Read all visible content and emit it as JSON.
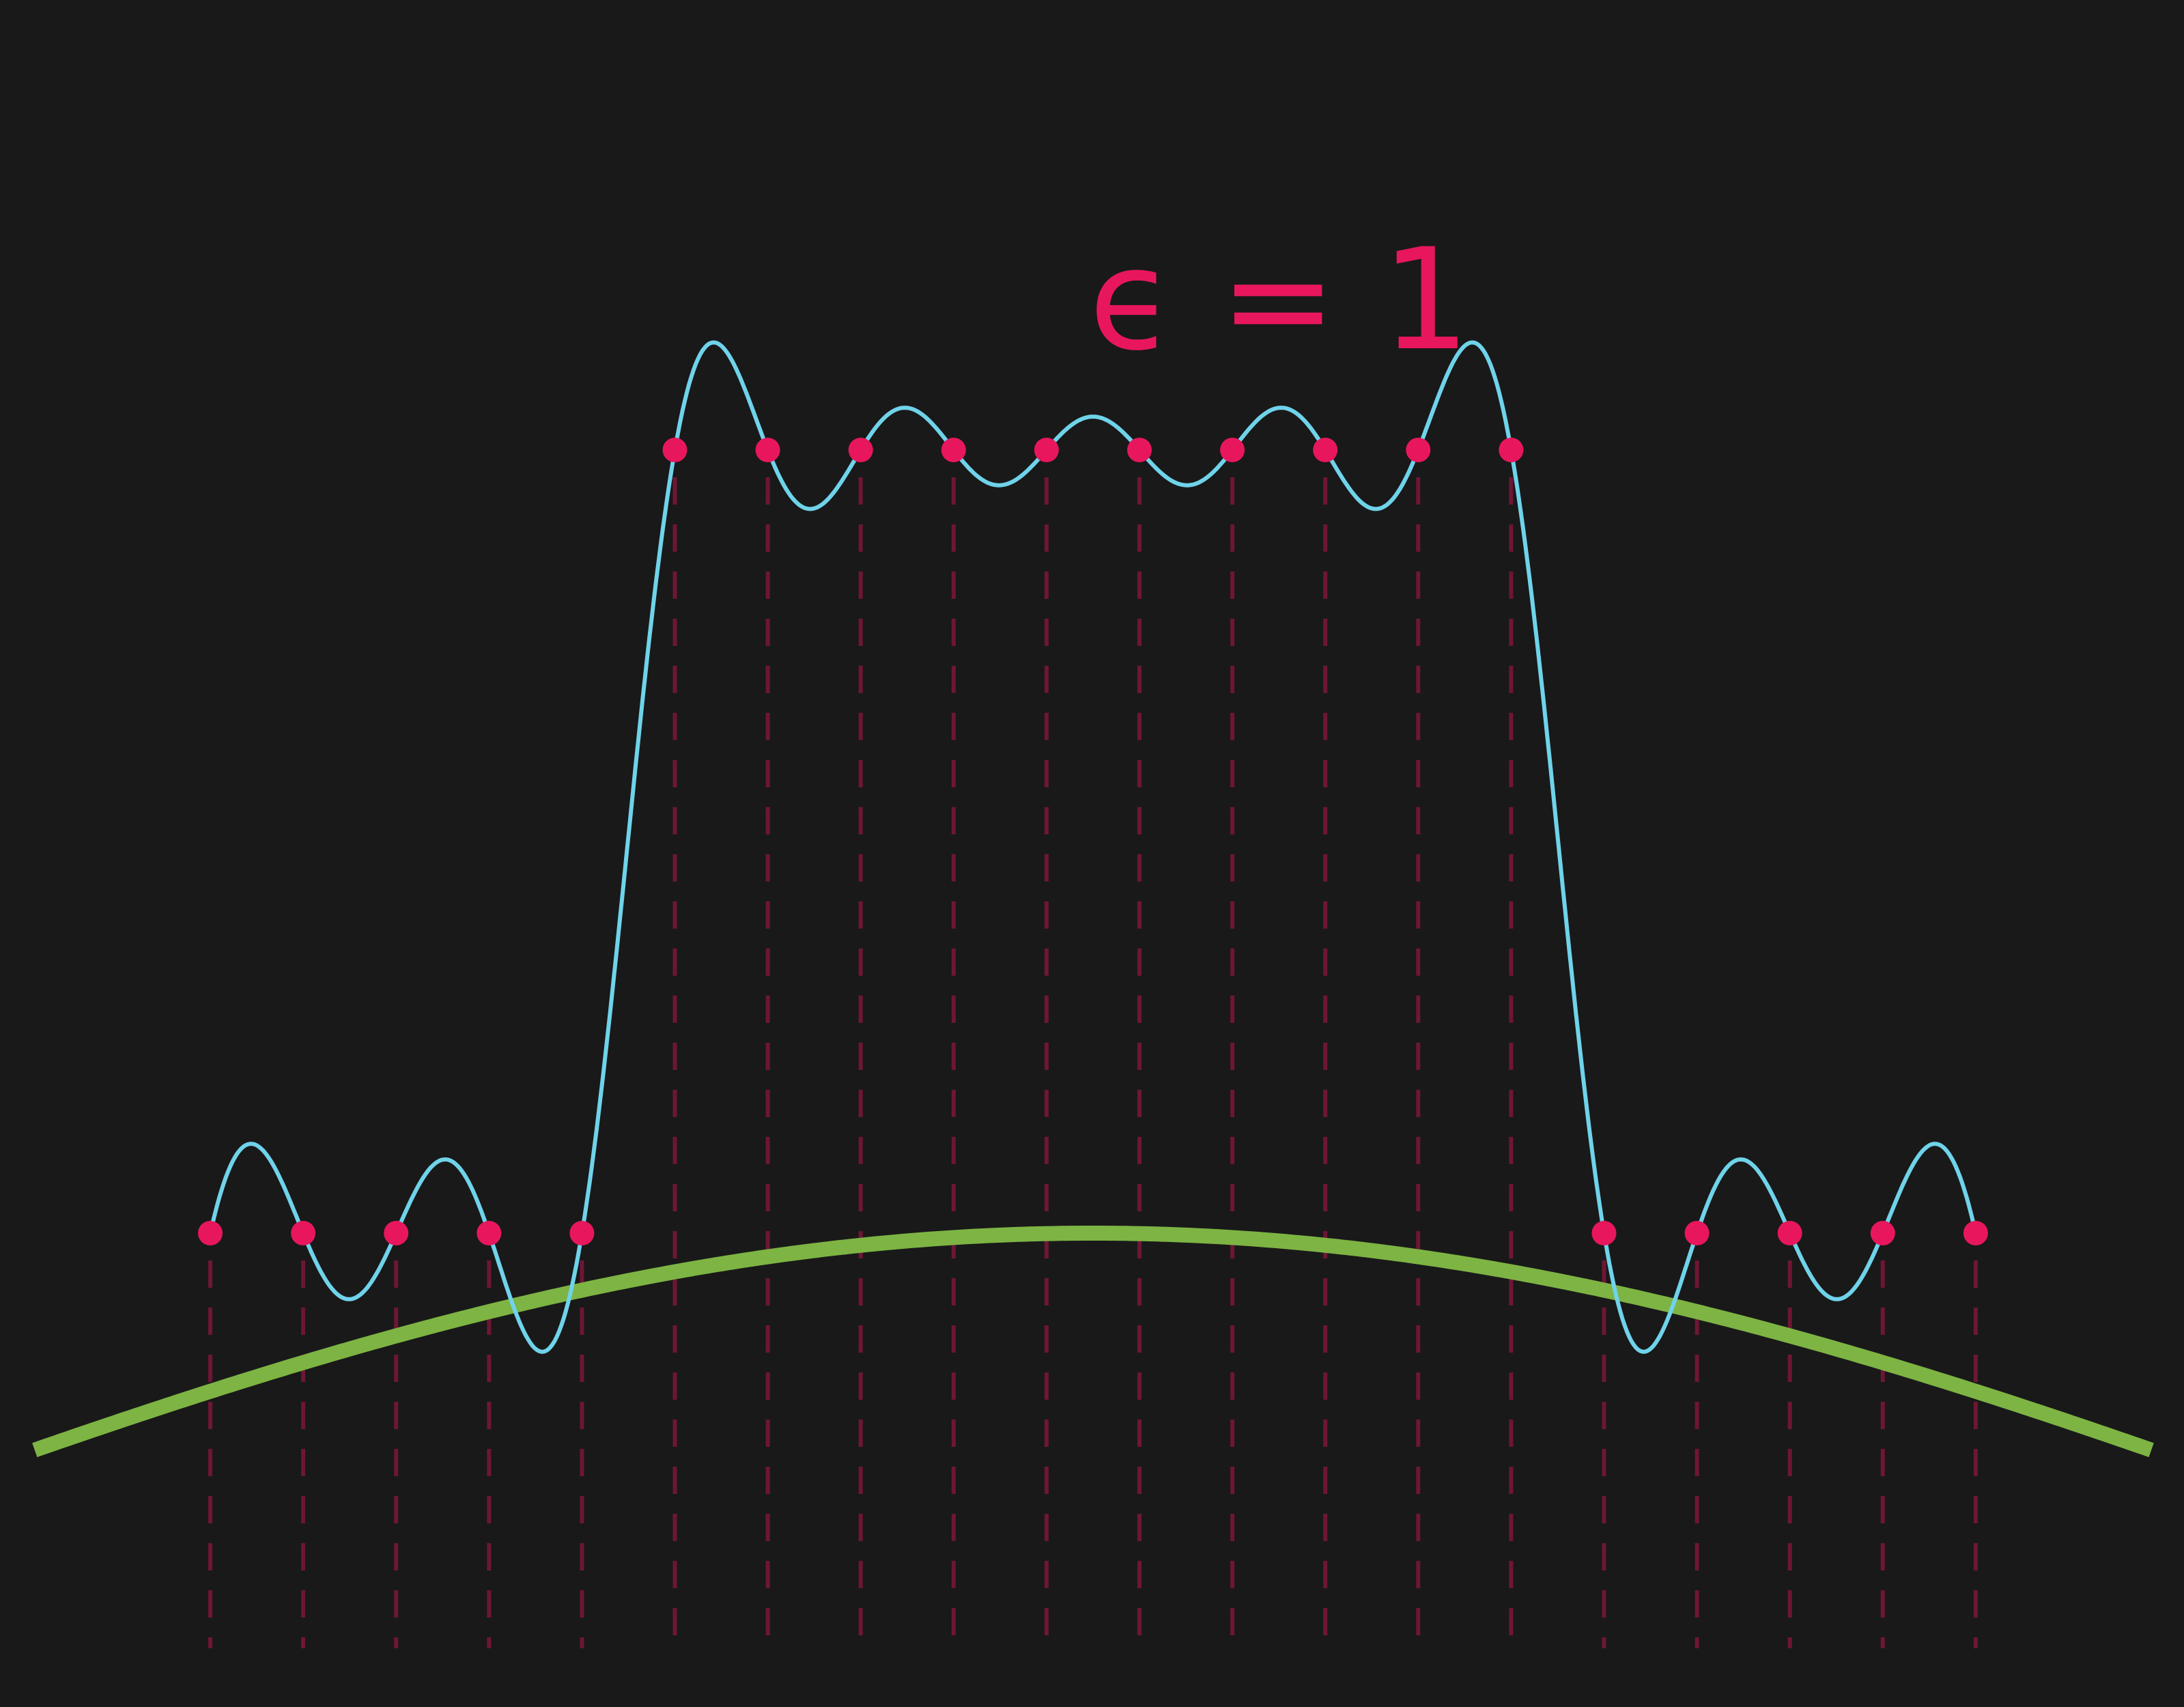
{
  "annotation": "ϵ = 1",
  "nodes": {
    "values": [
      0,
      0,
      0,
      0,
      0,
      1,
      1,
      1,
      1,
      1,
      1,
      1,
      1,
      1,
      1,
      0,
      0,
      0,
      0,
      0
    ],
    "color": "#e8175d",
    "guide_color": "#6e1634"
  },
  "interpolant": {
    "color": "#6fd3ea"
  },
  "basis": {
    "color": "#7db443"
  }
}
